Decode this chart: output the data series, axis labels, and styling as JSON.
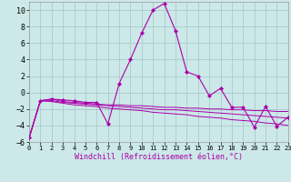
{
  "xlabel": "Windchill (Refroidissement éolien,°C)",
  "background_color": "#cce8e8",
  "grid_color": "#aacccc",
  "line_color": "#aa00aa",
  "xlim": [
    0,
    23
  ],
  "ylim": [
    -6,
    11
  ],
  "xticks": [
    0,
    1,
    2,
    3,
    4,
    5,
    6,
    7,
    8,
    9,
    10,
    11,
    12,
    13,
    14,
    15,
    16,
    17,
    18,
    19,
    20,
    21,
    22,
    23
  ],
  "yticks": [
    -6,
    -4,
    -2,
    0,
    2,
    4,
    6,
    8,
    10
  ],
  "series1_x": [
    0,
    1,
    2,
    3,
    4,
    5,
    6,
    7,
    8,
    9,
    10,
    11,
    12,
    13,
    14,
    15,
    16,
    17,
    18,
    19,
    20,
    21,
    22,
    23
  ],
  "series1_y": [
    -5.5,
    -1.0,
    -0.8,
    -0.9,
    -1.0,
    -1.2,
    -1.2,
    -3.8,
    1.1,
    4.0,
    7.2,
    10.0,
    10.8,
    7.5,
    2.5,
    2.0,
    -0.4,
    0.5,
    -1.8,
    -1.8,
    -4.2,
    -1.7,
    -4.1,
    -3.0
  ],
  "series2_x": [
    0,
    1,
    2,
    3,
    4,
    5,
    6,
    7,
    8,
    9,
    10,
    11,
    12,
    13,
    14,
    15,
    16,
    17,
    18,
    19,
    20,
    21,
    22,
    23
  ],
  "series2_y": [
    -5.5,
    -1.0,
    -0.8,
    -1.1,
    -1.2,
    -1.3,
    -1.4,
    -1.5,
    -1.5,
    -1.6,
    -1.6,
    -1.7,
    -1.8,
    -1.8,
    -1.9,
    -1.9,
    -2.0,
    -2.0,
    -2.1,
    -2.1,
    -2.2,
    -2.2,
    -2.3,
    -2.3
  ],
  "series3_x": [
    0,
    1,
    2,
    3,
    4,
    5,
    6,
    7,
    8,
    9,
    10,
    11,
    12,
    13,
    14,
    15,
    16,
    17,
    18,
    19,
    20,
    21,
    22,
    23
  ],
  "series3_y": [
    -5.5,
    -1.0,
    -1.0,
    -1.2,
    -1.3,
    -1.4,
    -1.5,
    -1.6,
    -1.7,
    -1.8,
    -1.9,
    -2.0,
    -2.1,
    -2.1,
    -2.2,
    -2.3,
    -2.4,
    -2.5,
    -2.6,
    -2.7,
    -2.8,
    -2.9,
    -3.0,
    -3.1
  ],
  "series4_x": [
    0,
    1,
    2,
    3,
    4,
    5,
    6,
    7,
    8,
    9,
    10,
    11,
    12,
    13,
    14,
    15,
    16,
    17,
    18,
    19,
    20,
    21,
    22,
    23
  ],
  "series4_y": [
    -5.5,
    -1.0,
    -1.1,
    -1.3,
    -1.5,
    -1.6,
    -1.7,
    -1.9,
    -2.0,
    -2.1,
    -2.2,
    -2.4,
    -2.5,
    -2.6,
    -2.7,
    -2.9,
    -3.0,
    -3.1,
    -3.3,
    -3.4,
    -3.5,
    -3.7,
    -3.8,
    -4.0
  ]
}
